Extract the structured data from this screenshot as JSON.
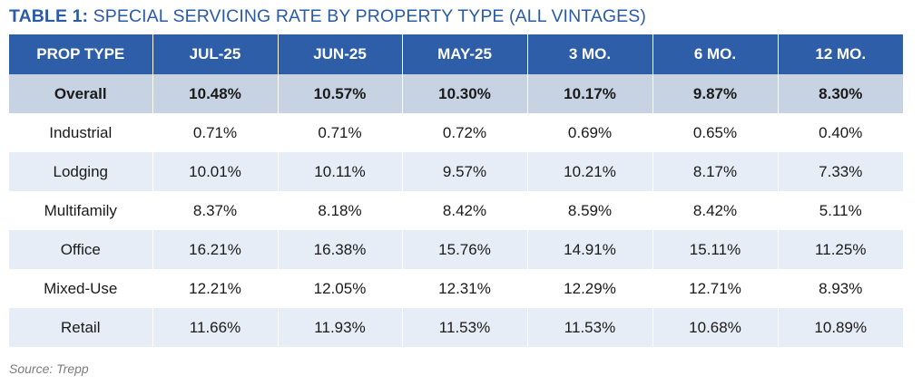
{
  "title": {
    "lead": "TABLE 1:",
    "text": " SPECIAL SERVICING RATE BY PROPERTY TYPE (ALL VINTAGES)"
  },
  "table": {
    "headers": [
      "PROP TYPE",
      "JUL-25",
      "JUN-25",
      "MAY-25",
      "3 MO.",
      "6 MO.",
      "12 MO."
    ],
    "rows": [
      [
        "Overall",
        "10.48%",
        "10.57%",
        "10.30%",
        "10.17%",
        "9.87%",
        "8.30%"
      ],
      [
        "Industrial",
        "0.71%",
        "0.71%",
        "0.72%",
        "0.69%",
        "0.65%",
        "0.40%"
      ],
      [
        "Lodging",
        "10.01%",
        "10.11%",
        "9.57%",
        "10.21%",
        "8.17%",
        "7.33%"
      ],
      [
        "Multifamily",
        "8.37%",
        "8.18%",
        "8.42%",
        "8.59%",
        "8.42%",
        "5.11%"
      ],
      [
        "Office",
        "16.21%",
        "16.38%",
        "15.76%",
        "14.91%",
        "15.11%",
        "11.25%"
      ],
      [
        "Mixed-Use",
        "12.21%",
        "12.05%",
        "12.31%",
        "12.29%",
        "12.71%",
        "8.93%"
      ],
      [
        "Retail",
        "11.66%",
        "11.93%",
        "11.53%",
        "11.53%",
        "10.68%",
        "10.89%"
      ]
    ]
  },
  "source": "Source: Trepp",
  "colors": {
    "title": "#2a5ba6",
    "header_bg": "#2f5ea8",
    "overall_bg": "#c7d3e2",
    "stripe_bg": "#e6edf6"
  }
}
